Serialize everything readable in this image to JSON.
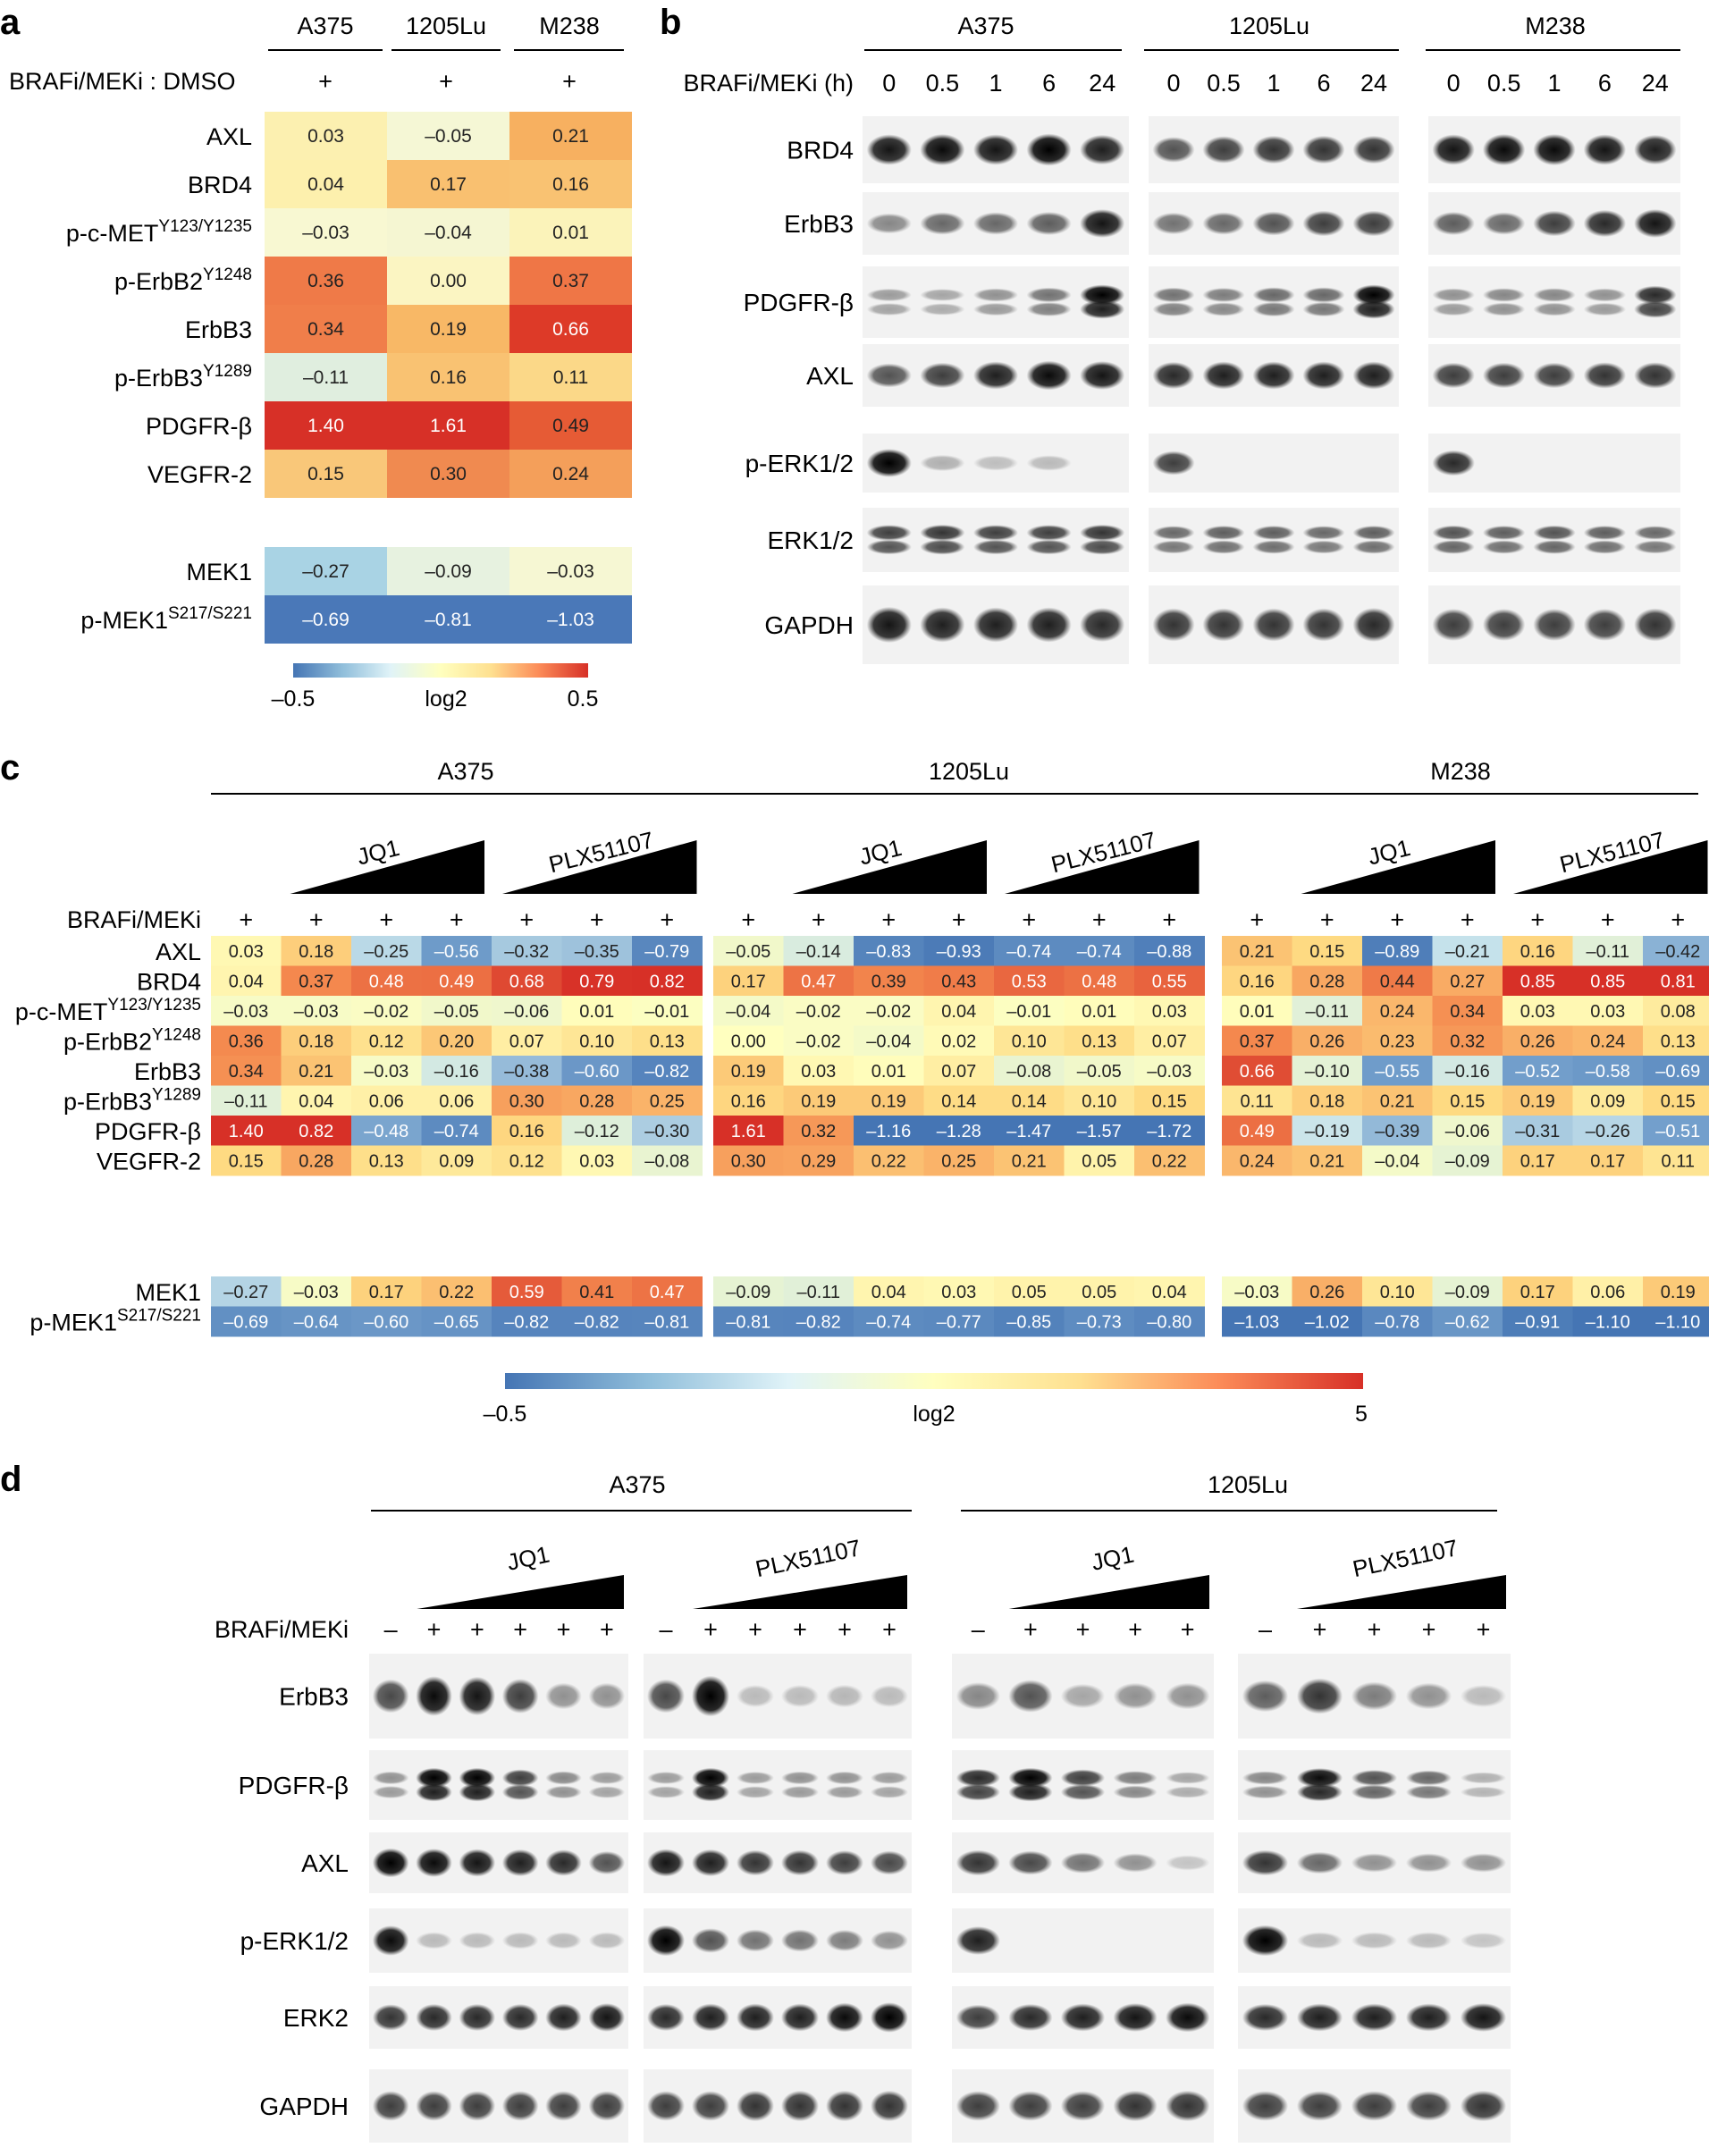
{
  "panels": {
    "a": "a",
    "b": "b",
    "c": "c",
    "d": "d"
  },
  "panel_a": {
    "cell_lines": [
      "A375",
      "1205Lu",
      "M238"
    ],
    "treatment_label": "BRAFi/MEKi : DMSO",
    "treatment_marks": [
      "+",
      "+",
      "+"
    ],
    "rows": [
      {
        "base": "AXL",
        "sup": "",
        "values": [
          "0.03",
          "–0.05",
          "0.21"
        ],
        "colors": [
          "#fcf0b0",
          "#f5f7d5",
          "#f7b060"
        ]
      },
      {
        "base": "BRD4",
        "sup": "",
        "values": [
          "0.04",
          "0.17",
          "0.16"
        ],
        "colors": [
          "#fdf0ad",
          "#f9c070",
          "#f9c272"
        ]
      },
      {
        "base": "p-c-MET",
        "sup": "Y123/Y1235",
        "values": [
          "–0.03",
          "–0.04",
          "0.01"
        ],
        "colors": [
          "#f8f8d2",
          "#f5f6d2",
          "#fbf3ba"
        ]
      },
      {
        "base": "p-ErbB2",
        "sup": "Y1248",
        "values": [
          "0.36",
          "0.00",
          "0.37"
        ],
        "colors": [
          "#ef7a48",
          "#fbf5c2",
          "#ef7646"
        ]
      },
      {
        "base": "ErbB3",
        "sup": "",
        "values": [
          "0.34",
          "0.19",
          "0.66"
        ],
        "colors": [
          "#f07e4a",
          "#f8b866",
          "#dd3a28"
        ]
      },
      {
        "base": "p-ErbB3",
        "sup": "Y1289",
        "values": [
          "–0.11",
          "0.16",
          "0.11"
        ],
        "colors": [
          "#e0eedf",
          "#f9c272",
          "#fbd888"
        ]
      },
      {
        "base": "PDGFR-β",
        "sup": "",
        "values": [
          "1.40",
          "1.61",
          "0.49"
        ],
        "colors": [
          "#d73027",
          "#d73027",
          "#e65b35"
        ]
      },
      {
        "base": "VEGFR-2",
        "sup": "",
        "values": [
          "0.15",
          "0.30",
          "0.24"
        ],
        "colors": [
          "#f9c779",
          "#f08a50",
          "#f49f5a"
        ]
      }
    ],
    "mek_rows": [
      {
        "base": "MEK1",
        "sup": "",
        "values": [
          "–0.27",
          "–0.09",
          "–0.03"
        ],
        "colors": [
          "#a9d3e4",
          "#e7f2e0",
          "#f6f7d3"
        ]
      },
      {
        "base": "p-MEK1",
        "sup": "S217/S221",
        "values": [
          "–0.69",
          "–0.81",
          "–1.03"
        ],
        "colors": [
          "#4a78b8",
          "#4a78b8",
          "#4a78b8"
        ]
      }
    ],
    "colorbar": {
      "min": "–0.5",
      "label": "log2",
      "max": "0.5",
      "colors": [
        "#4575b4",
        "#91bfdb",
        "#e0f3f8",
        "#ffffbf",
        "#fee090",
        "#fc8d59",
        "#d73027"
      ]
    }
  },
  "panel_b": {
    "cell_lines": [
      "A375",
      "1205Lu",
      "M238"
    ],
    "time_label": "BRAFi/MEKi (h)",
    "times": [
      "0",
      "0.5",
      "1",
      "6",
      "24"
    ],
    "rows": [
      "BRD4",
      "ErbB3",
      "PDGFR-β",
      "AXL",
      "p-ERK1/2",
      "ERK1/2",
      "GAPDH"
    ]
  },
  "panel_c": {
    "cell_lines": [
      "A375",
      "1205Lu",
      "M238"
    ],
    "drug_labels": [
      "JQ1",
      "PLX51107"
    ],
    "treatment_label": "BRAFi/MEKi",
    "treatment_marks": [
      "+",
      "+",
      "+",
      "+",
      "+",
      "+",
      "+"
    ],
    "row_labels": [
      {
        "base": "AXL",
        "sup": ""
      },
      {
        "base": "BRD4",
        "sup": ""
      },
      {
        "base": "p-c-MET",
        "sup": "Y123/Y1235"
      },
      {
        "base": "p-ErbB2",
        "sup": "Y1248"
      },
      {
        "base": "ErbB3",
        "sup": ""
      },
      {
        "base": "p-ErbB3",
        "sup": "Y1289"
      },
      {
        "base": "PDGFR-β",
        "sup": ""
      },
      {
        "base": "VEGFR-2",
        "sup": ""
      }
    ],
    "mek_labels": [
      {
        "base": "MEK1",
        "sup": ""
      },
      {
        "base": "p-MEK1",
        "sup": "S217/S221"
      }
    ],
    "values": [
      [
        [
          "0.03",
          "0.18",
          "–0.25",
          "–0.56",
          "–0.32",
          "–0.35",
          "–0.79"
        ],
        [
          "0.04",
          "0.37",
          "0.48",
          "0.49",
          "0.68",
          "0.79",
          "0.82"
        ],
        [
          "–0.03",
          "–0.03",
          "–0.02",
          "–0.05",
          "–0.06",
          "0.01",
          "–0.01"
        ],
        [
          "0.36",
          "0.18",
          "0.12",
          "0.20",
          "0.07",
          "0.10",
          "0.13"
        ],
        [
          "0.34",
          "0.21",
          "–0.03",
          "–0.16",
          "–0.38",
          "–0.60",
          "–0.82"
        ],
        [
          "–0.11",
          "0.04",
          "0.06",
          "0.06",
          "0.30",
          "0.28",
          "0.25"
        ],
        [
          "1.40",
          "0.82",
          "–0.48",
          "–0.74",
          "0.16",
          "–0.12",
          "–0.30"
        ],
        [
          "0.15",
          "0.28",
          "0.13",
          "0.09",
          "0.12",
          "0.03",
          "–0.08"
        ]
      ],
      [
        [
          "–0.05",
          "–0.14",
          "–0.83",
          "–0.93",
          "–0.74",
          "–0.74",
          "–0.88"
        ],
        [
          "0.17",
          "0.47",
          "0.39",
          "0.43",
          "0.53",
          "0.48",
          "0.55"
        ],
        [
          "–0.04",
          "–0.02",
          "–0.02",
          "0.04",
          "–0.01",
          "0.01",
          "0.03"
        ],
        [
          "0.00",
          "–0.02",
          "–0.04",
          "0.02",
          "0.10",
          "0.13",
          "0.07"
        ],
        [
          "0.19",
          "0.03",
          "0.01",
          "0.07",
          "–0.08",
          "–0.05",
          "–0.03"
        ],
        [
          "0.16",
          "0.19",
          "0.19",
          "0.14",
          "0.14",
          "0.10",
          "0.15"
        ],
        [
          "1.61",
          "0.32",
          "–1.16",
          "–1.28",
          "–1.47",
          "–1.57",
          "–1.72"
        ],
        [
          "0.30",
          "0.29",
          "0.22",
          "0.25",
          "0.21",
          "0.05",
          "0.22"
        ]
      ],
      [
        [
          "0.21",
          "0.15",
          "–0.89",
          "–0.21",
          "0.16",
          "–0.11",
          "–0.42"
        ],
        [
          "0.16",
          "0.28",
          "0.44",
          "0.27",
          "0.85",
          "0.85",
          "0.81"
        ],
        [
          "0.01",
          "–0.11",
          "0.24",
          "0.34",
          "0.03",
          "0.03",
          "0.08"
        ],
        [
          "0.37",
          "0.26",
          "0.23",
          "0.32",
          "0.26",
          "0.24",
          "0.13"
        ],
        [
          "0.66",
          "–0.10",
          "–0.55",
          "–0.16",
          "–0.52",
          "–0.58",
          "–0.69"
        ],
        [
          "0.11",
          "0.18",
          "0.21",
          "0.15",
          "0.19",
          "0.09",
          "0.15"
        ],
        [
          "0.49",
          "–0.19",
          "–0.39",
          "–0.06",
          "–0.31",
          "–0.26",
          "–0.51"
        ],
        [
          "0.24",
          "0.21",
          "–0.04",
          "–0.09",
          "0.17",
          "0.17",
          "0.11"
        ]
      ]
    ],
    "mek_values": [
      [
        [
          "–0.27",
          "–0.03",
          "0.17",
          "0.22",
          "0.59",
          "0.41",
          "0.47"
        ],
        [
          "–0.69",
          "–0.64",
          "–0.60",
          "–0.65",
          "–0.82",
          "–0.82",
          "–0.81"
        ]
      ],
      [
        [
          "–0.09",
          "–0.11",
          "0.04",
          "0.03",
          "0.05",
          "0.05",
          "0.04"
        ],
        [
          "–0.81",
          "–0.82",
          "–0.74",
          "–0.77",
          "–0.85",
          "–0.73",
          "–0.80"
        ]
      ],
      [
        [
          "–0.03",
          "0.26",
          "0.10",
          "–0.09",
          "0.17",
          "0.06",
          "0.19"
        ],
        [
          "–1.03",
          "–1.02",
          "–0.78",
          "–0.62",
          "–0.91",
          "–1.10",
          "–1.10"
        ]
      ]
    ],
    "colorbar": {
      "min": "–0.5",
      "label": "log2",
      "max": "5"
    }
  },
  "panel_d": {
    "cell_lines": [
      "A375",
      "1205Lu"
    ],
    "drug_labels": [
      "JQ1",
      "PLX51107"
    ],
    "treatment_label": "BRAFi/MEKi",
    "a375_marks": [
      "–",
      "+",
      "+",
      "+",
      "+",
      "+"
    ],
    "lu_marks": [
      "–",
      "+",
      "+",
      "+",
      "+"
    ],
    "rows": [
      "ErbB3",
      "PDGFR-β",
      "AXL",
      "p-ERK1/2",
      "ERK2",
      "GAPDH"
    ]
  }
}
